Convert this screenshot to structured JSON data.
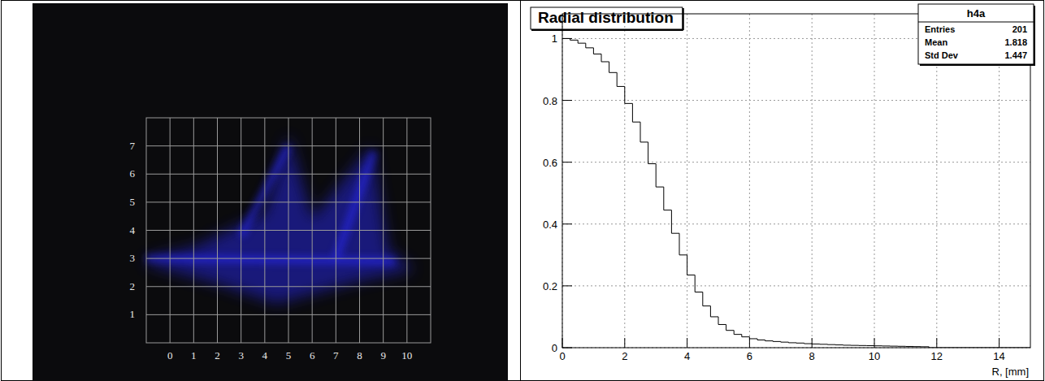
{
  "chart_data": [
    {
      "type": "image",
      "xlim": [
        -1,
        11
      ],
      "ylim": [
        0,
        8
      ],
      "xticks": [
        0,
        1,
        2,
        3,
        4,
        5,
        6,
        7,
        8,
        9,
        10
      ],
      "yticks": [
        1,
        2,
        3,
        4,
        5,
        6,
        7
      ],
      "grid": true,
      "color": "#2a2aff"
    },
    {
      "type": "histogram",
      "title": "Radial distribution",
      "x_label": "R, [mm]",
      "bins": [
        0,
        0.25,
        0.5,
        0.75,
        1,
        1.25,
        1.5,
        1.75,
        2,
        2.25,
        2.5,
        2.75,
        3,
        3.25,
        3.5,
        3.75,
        4,
        4.25,
        4.5,
        4.75,
        5,
        5.25,
        5.5,
        5.75,
        6,
        6.25,
        6.5,
        6.75,
        7,
        7.25,
        7.5,
        7.75,
        8,
        8.25,
        8.5,
        8.75,
        9,
        9.25,
        9.5,
        9.75,
        10,
        10.25,
        10.5,
        10.75,
        11,
        11.25,
        11.5,
        11.75,
        12,
        12.25,
        12.5,
        12.75,
        13,
        13.25,
        13.5,
        13.75,
        14,
        14.25,
        14.5,
        14.75,
        15
      ],
      "values": [
        1.0,
        0.995,
        0.985,
        0.97,
        0.95,
        0.925,
        0.89,
        0.845,
        0.79,
        0.73,
        0.665,
        0.595,
        0.52,
        0.445,
        0.37,
        0.3,
        0.235,
        0.18,
        0.135,
        0.1,
        0.075,
        0.056,
        0.043,
        0.035,
        0.029,
        0.025,
        0.022,
        0.02,
        0.018,
        0.016,
        0.015,
        0.013,
        0.012,
        0.011,
        0.01,
        0.009,
        0.008,
        0.0075,
        0.007,
        0.0065,
        0.006,
        0.0055,
        0.005,
        0.0045,
        0.004,
        0.0035,
        0.003,
        0,
        0,
        0,
        0,
        0,
        0,
        0,
        0,
        0,
        0,
        0,
        0,
        0
      ],
      "xlim": [
        0,
        15
      ],
      "ylim": [
        0,
        1.08
      ],
      "xticks": [
        0,
        2,
        4,
        6,
        8,
        10,
        12,
        14
      ],
      "yticks": [
        0,
        {
          "value": 0.2,
          "label": "0.2"
        },
        {
          "value": 0.4,
          "label": "0.4"
        },
        {
          "value": 0.6,
          "label": "0.6"
        },
        {
          "value": 0.8,
          "label": "0.8"
        },
        1
      ],
      "grid": true,
      "color": "#000000",
      "stats": {
        "title": "h4a",
        "rows": [
          {
            "label": "Entries",
            "value": 201
          },
          {
            "label": "Mean",
            "value": 1.818
          },
          {
            "label": "Std Dev",
            "value": 1.447
          }
        ]
      }
    }
  ]
}
